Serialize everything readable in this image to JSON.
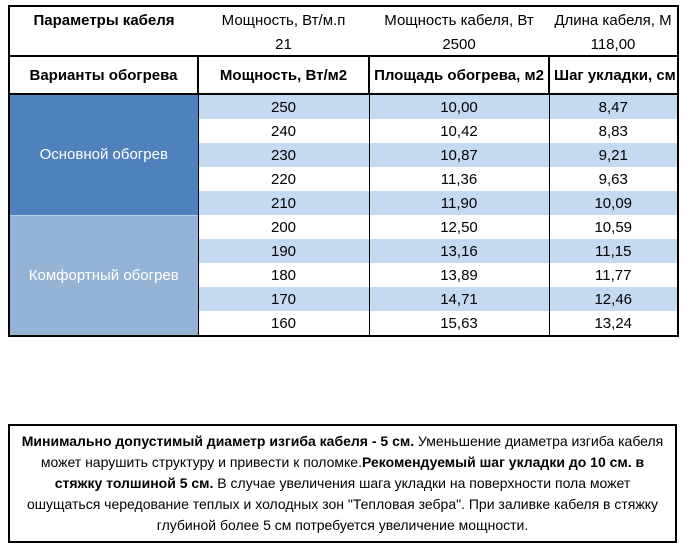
{
  "top_info": {
    "title": "Параметры кабеля",
    "columns": [
      {
        "label": "Мощность, Вт/м.п",
        "value": "21"
      },
      {
        "label": "Мощность кабеля, Вт",
        "value": "2500"
      },
      {
        "label": "Длина кабеля, М",
        "value": "118,00"
      }
    ]
  },
  "table": {
    "headers": [
      "Варианты обогрева",
      "Мощность, Вт/м2",
      "Площадь обогрева, м2",
      "Шаг укладки, см"
    ],
    "colors": {
      "section_primary": "#4F81BD",
      "section_comfort": "#95B3D7",
      "stripe": "#C5D9F1",
      "row_plain": "#FFFFFF",
      "border": "#000000",
      "section_text": "#FFFFFF"
    },
    "sections": [
      {
        "name": "Основной обогрев",
        "color": "#4F81BD",
        "rows": [
          [
            "250",
            "10,00",
            "8,47"
          ],
          [
            "240",
            "10,42",
            "8,83"
          ],
          [
            "230",
            "10,87",
            "9,21"
          ],
          [
            "220",
            "11,36",
            "9,63"
          ],
          [
            "210",
            "11,90",
            "10,09"
          ]
        ]
      },
      {
        "name": "Комфортный обогрев",
        "color": "#95B3D7",
        "rows": [
          [
            "200",
            "12,50",
            "10,59"
          ],
          [
            "190",
            "13,16",
            "11,15"
          ],
          [
            "180",
            "13,89",
            "11,77"
          ],
          [
            "170",
            "14,71",
            "12,46"
          ],
          [
            "160",
            "15,63",
            "13,24"
          ]
        ]
      }
    ]
  },
  "note": {
    "segments": [
      {
        "text": "Минимально допустимый диаметр изгиба кабеля - 5 см.",
        "bold": true
      },
      {
        "text": "  Уменьшение диаметра изгиба кабеля может нарушить структуру и привести к поломке.",
        "bold": false
      },
      {
        "text": "Рекомендуемый шаг укладки до 10 см. в стяжку толшиной 5 см.",
        "bold": true
      },
      {
        "text": " В  случае увеличения шага укладки на поверхности пола может ошущаться чередование теплых и холодных зон \"Тепловая зебра\". При заливке кабеля в стяжку глубиной более 5 см потребуется увеличение мощности.",
        "bold": false
      }
    ]
  }
}
